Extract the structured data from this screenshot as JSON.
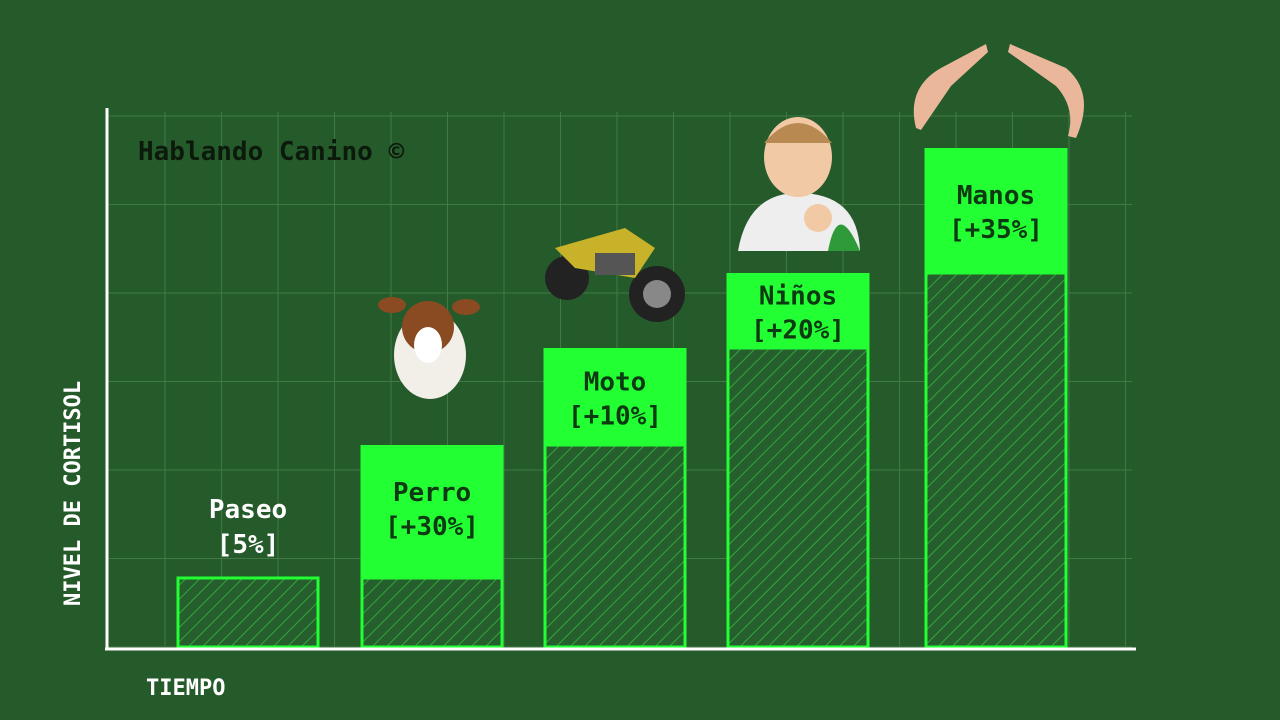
{
  "chart_data": {
    "type": "bar",
    "subtype": "stacked-increment",
    "title": "Hablando Canino ©",
    "xlabel": "TIEMPO",
    "ylabel": "NIVEL DE CORTISOL",
    "categories": [
      "Paseo",
      "Perro",
      "Moto",
      "Niños",
      "Manos"
    ],
    "increments": [
      5,
      30,
      10,
      20,
      35
    ],
    "labels": [
      "[5%]",
      "[+30%]",
      "[+10%]",
      "[+20%]",
      "[+35%]"
    ],
    "icons": [
      "",
      "dog-icon",
      "motorcycle-icon",
      "baby-icon",
      "hands-icon"
    ],
    "ylim": [
      0,
      100
    ],
    "grid": true,
    "colors": {
      "background": "#255a2b",
      "increment": "#22ff33",
      "base": "#22ff33",
      "axis": "#ffffff",
      "grid": "#3f7a45"
    }
  }
}
